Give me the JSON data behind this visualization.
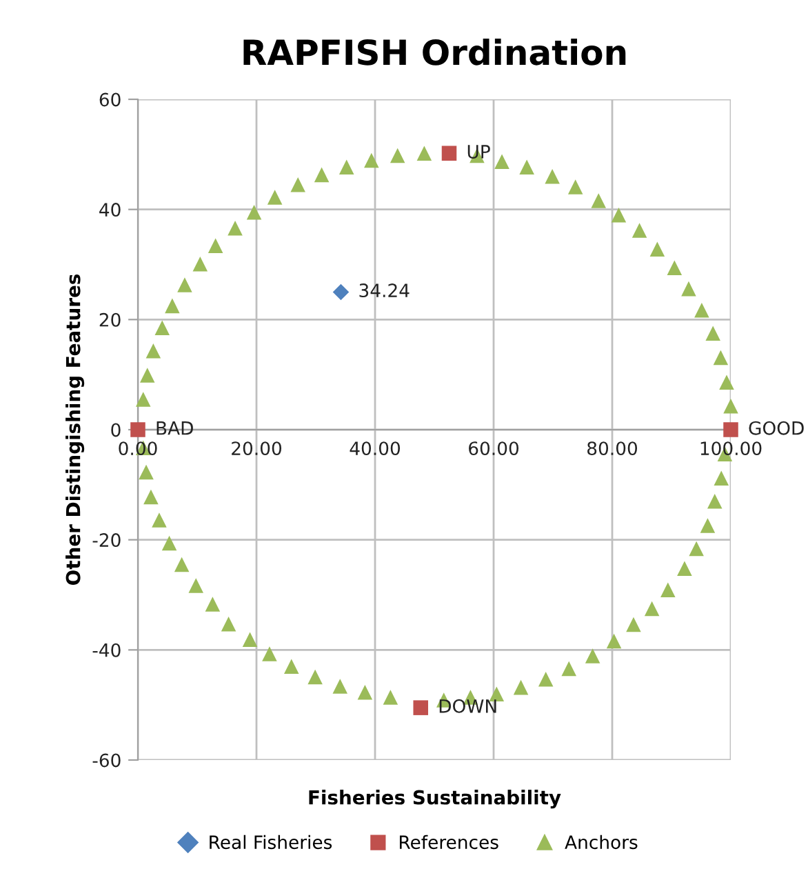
{
  "chart_data": {
    "type": "scatter",
    "title": "RAPFISH Ordination",
    "xlabel": "Fisheries Sustainability",
    "ylabel": "Other Distingishing Features",
    "xlim": [
      0,
      100
    ],
    "ylim": [
      -60,
      60
    ],
    "xticks": [
      {
        "value": 0,
        "label": "0.00"
      },
      {
        "value": 20,
        "label": "20.00"
      },
      {
        "value": 40,
        "label": "40.00"
      },
      {
        "value": 60,
        "label": "60.00"
      },
      {
        "value": 80,
        "label": "80.00"
      },
      {
        "value": 100,
        "label": "100.00"
      }
    ],
    "yticks": [
      -60,
      -40,
      -20,
      0,
      20,
      40,
      60
    ],
    "grid": true,
    "legend": "bottom",
    "series": [
      {
        "name": "Real Fisheries",
        "color": "#4f81bd",
        "marker": "diamond",
        "x": [
          34.24
        ],
        "values": [
          25
        ]
      },
      {
        "name": "References",
        "color": "#c0504d",
        "marker": "square",
        "x": [
          0,
          100,
          52.5,
          47.7
        ],
        "values": [
          0,
          0,
          50.2,
          -50.5
        ]
      },
      {
        "name": "Anchors",
        "color": "#9bbb59",
        "marker": "triangle",
        "x": [
          48.3,
          43.8,
          39.4,
          35.2,
          31.0,
          27.0,
          23.1,
          19.6,
          16.4,
          13.1,
          10.5,
          7.9,
          5.8,
          4.1,
          2.6,
          1.6,
          0.9,
          0.9,
          1.4,
          2.2,
          3.6,
          5.3,
          7.4,
          9.8,
          12.6,
          15.3,
          18.9,
          22.2,
          25.9,
          29.9,
          34.1,
          38.3,
          42.6,
          51.6,
          56.1,
          60.5,
          64.6,
          68.8,
          72.7,
          76.7,
          80.3,
          83.6,
          86.7,
          89.4,
          92.2,
          94.2,
          96.1,
          97.3,
          98.4,
          99.0,
          100.0,
          99.3,
          98.3,
          97.0,
          95.1,
          92.9,
          90.5,
          87.6,
          84.6,
          81.1,
          77.7,
          73.8,
          69.9,
          65.6,
          61.4,
          57.2
        ],
        "values": [
          50.2,
          49.8,
          48.9,
          47.7,
          46.3,
          44.5,
          42.2,
          39.5,
          36.6,
          33.4,
          30.1,
          26.3,
          22.5,
          18.5,
          14.3,
          9.9,
          5.5,
          -3.3,
          -7.7,
          -12.2,
          -16.4,
          -20.6,
          -24.5,
          -28.3,
          -31.7,
          -35.3,
          -38.1,
          -40.7,
          -43.0,
          -44.9,
          -46.6,
          -47.7,
          -48.6,
          -49.1,
          -48.6,
          -48.0,
          -46.8,
          -45.3,
          -43.4,
          -41.1,
          -38.4,
          -35.4,
          -32.5,
          -29.1,
          -25.2,
          -21.6,
          -17.4,
          -13.0,
          -8.8,
          -4.4,
          4.3,
          8.6,
          13.1,
          17.5,
          21.7,
          25.6,
          29.4,
          32.8,
          36.2,
          39.0,
          41.6,
          44.1,
          46.0,
          47.7,
          48.7,
          49.8
        ]
      }
    ],
    "annotations": [
      {
        "text": "34.24",
        "x": 34.24,
        "y": 25
      },
      {
        "text": "BAD",
        "x": 0,
        "y": 0
      },
      {
        "text": "GOOD",
        "x": 100,
        "y": 0
      },
      {
        "text": "UP",
        "x": 52.5,
        "y": 50.2
      },
      {
        "text": "DOWN",
        "x": 47.7,
        "y": -50.5
      }
    ]
  }
}
